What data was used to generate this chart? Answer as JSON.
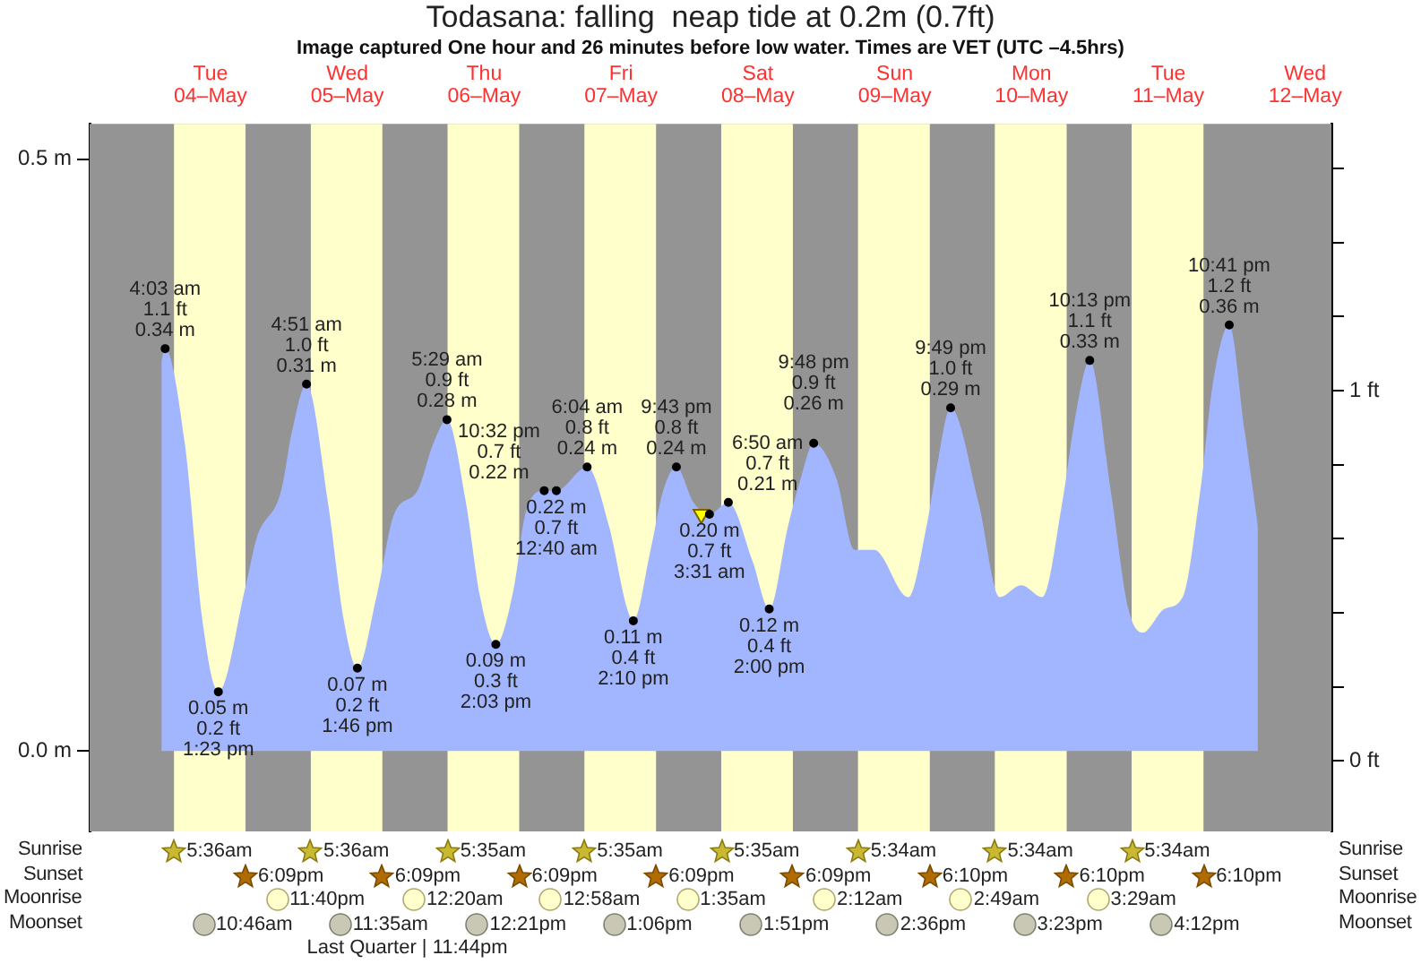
{
  "chart_data": [
    {
      "type": "area",
      "title": "Todasana: falling  neap tide at 0.2m (0.7ft)",
      "subtitle": "Image captured One hour and 26 minutes before low water. Times are VET (UTC –4.5hrs)",
      "xlim": [
        "--05-03T14:48",
        "--05-12T16:36"
      ],
      "xticks": [
        {
          "value": "--05-04T12:00",
          "label": "Tue\n04–May"
        },
        {
          "value": "--05-05T12:00",
          "label": "Wed\n05–May"
        },
        {
          "value": "--05-06T12:00",
          "label": "Thu\n06–May"
        },
        {
          "value": "--05-07T12:00",
          "label": "Fri\n07–May"
        },
        {
          "value": "--05-08T12:00",
          "label": "Sat\n08–May"
        },
        {
          "value": "--05-09T12:00",
          "label": "Sun\n09–May"
        },
        {
          "value": "--05-10T12:00",
          "label": "Mon\n10–May"
        },
        {
          "value": "--05-11T12:00",
          "label": "Tue\n11–May"
        },
        {
          "value": "--05-12T12:00",
          "label": "Wed\n12–May"
        }
      ],
      "ylim": [
        -0.068,
        0.53
      ],
      "yticks": [
        {
          "value": 0,
          "label": "0.0 m"
        },
        {
          "value": 0.5,
          "label": "0.5 m"
        }
      ],
      "y2lim": [
        -0.19,
        1.72
      ],
      "y2ticks": [
        {
          "value": 0,
          "label": "0 ft"
        },
        {
          "value": 0.2,
          "label": null
        },
        {
          "value": 0.4,
          "label": null
        },
        {
          "value": 0.6,
          "label": null
        },
        {
          "value": 0.8,
          "label": null
        },
        {
          "value": 1,
          "label": "1 ft"
        },
        {
          "value": 1.2,
          "label": null
        },
        {
          "value": 1.4,
          "label": null
        },
        {
          "value": 1.6,
          "label": null
        }
      ],
      "bands": [
        {
          "axis": "x",
          "from": "--05-04T05:36",
          "to": "--05-04T18:09",
          "color": "#ffffcc"
        },
        {
          "axis": "x",
          "from": "--05-05T05:36",
          "to": "--05-05T18:09",
          "color": "#ffffcc"
        },
        {
          "axis": "x",
          "from": "--05-06T05:35",
          "to": "--05-06T18:09",
          "color": "#ffffcc"
        },
        {
          "axis": "x",
          "from": "--05-07T05:35",
          "to": "--05-07T18:09",
          "color": "#ffffcc"
        },
        {
          "axis": "x",
          "from": "--05-08T05:35",
          "to": "--05-08T18:09",
          "color": "#ffffcc"
        },
        {
          "axis": "x",
          "from": "--05-09T05:34",
          "to": "--05-09T18:10",
          "color": "#ffffcc"
        },
        {
          "axis": "x",
          "from": "--05-10T05:34",
          "to": "--05-10T18:10",
          "color": "#ffffcc"
        },
        {
          "axis": "x",
          "from": "--05-11T05:34",
          "to": "--05-11T18:10",
          "color": "#ffffcc"
        }
      ],
      "series": [
        {
          "color": "#a2b5ff",
          "x": [
            "--05-04T03:24",
            "--05-04T04:03",
            "--05-04T07:30",
            "--05-04T10:36",
            "--05-04T13:23",
            "--05-04T18:12",
            "--05-04T20:06",
            "--05-05T00:24",
            "--05-05T02:18",
            "--05-05T04:51",
            "--05-05T08:36",
            "--05-05T11:24",
            "--05-05T13:46",
            "--05-05T17:06",
            "--05-05T20:12",
            "--05-06T00:18",
            "--05-06T03:06",
            "--05-06T05:29",
            "--05-06T08:48",
            "--05-06T11:18",
            "--05-06T14:03",
            "--05-06T17:18",
            "--05-06T19:12",
            "--05-06T22:32",
            "--05-07T00:40",
            "--05-07T06:04",
            "--05-07T09:54",
            "--05-07T13:06",
            "--05-07T14:10",
            "--05-07T17:12",
            "--05-07T19:24",
            "--05-07T21:43",
            "--05-08T00:42",
            "--05-08T03:31",
            "--05-08T06:50",
            "--05-08T11:06",
            "--05-08T14:00",
            "--05-08T17:18",
            "--05-08T19:30",
            "--05-08T21:48",
            "--05-09T01:48",
            "--05-09T05:00",
            "--05-09T08:24",
            "--05-09T14:24",
            "--05-09T17:36",
            "--05-09T19:24",
            "--05-09T21:49",
            "--05-10T02:42",
            "--05-10T06:24",
            "--05-10T10:12",
            "--05-10T13:54",
            "--05-10T17:24",
            "--05-10T19:36",
            "--05-10T22:13",
            "--05-11T01:54",
            "--05-11T05:00",
            "--05-11T07:30",
            "--05-11T11:18",
            "--05-11T14:30",
            "--05-11T17:36",
            "--05-11T19:48",
            "--05-11T22:41",
            "--05-12T01:24",
            "--05-12T03:42"
          ],
          "values": [
            0.33,
            0.34,
            0.26,
            0.11,
            0.05,
            0.14,
            0.18,
            0.22,
            0.27,
            0.31,
            0.21,
            0.11,
            0.07,
            0.13,
            0.2,
            0.22,
            0.26,
            0.28,
            0.21,
            0.13,
            0.09,
            0.14,
            0.2,
            0.22,
            0.22,
            0.24,
            0.19,
            0.12,
            0.11,
            0.17,
            0.22,
            0.24,
            0.21,
            0.2,
            0.21,
            0.16,
            0.12,
            0.19,
            0.23,
            0.26,
            0.23,
            0.17,
            0.17,
            0.13,
            0.19,
            0.24,
            0.29,
            0.21,
            0.13,
            0.14,
            0.13,
            0.21,
            0.28,
            0.33,
            0.22,
            0.12,
            0.1,
            0.12,
            0.13,
            0.22,
            0.31,
            0.36,
            0.27,
            0.19
          ]
        },
        {
          "type": "scatter",
          "color": "#000000",
          "marker": "circle",
          "x": [
            "--05-04T04:03",
            "--05-04T13:23",
            "--05-05T04:51",
            "--05-05T13:46",
            "--05-06T05:29",
            "--05-06T14:03",
            "--05-06T22:32",
            "--05-07T00:40",
            "--05-07T06:04",
            "--05-07T14:10",
            "--05-07T21:43",
            "--05-08T03:31",
            "--05-08T06:50",
            "--05-08T14:00",
            "--05-08T21:48",
            "--05-09T21:49",
            "--05-10T22:13",
            "--05-11T22:41"
          ],
          "values": [
            0.34,
            0.05,
            0.31,
            0.07,
            0.28,
            0.09,
            0.22,
            0.22,
            0.24,
            0.11,
            0.24,
            0.2,
            0.21,
            0.12,
            0.26,
            0.29,
            0.33,
            0.36
          ]
        },
        {
          "type": "scatter",
          "color": "#ffff00",
          "marker": "triangle",
          "x": [
            "--05-08T02:05"
          ],
          "values": [
            0.2
          ]
        }
      ],
      "annotations": [
        {
          "text": "4:03 am\n1.1 ft\n0.34 m",
          "x": "--05-04T04:03",
          "y": 0.34
        },
        {
          "text": "0.05 m\n0.2 ft\n1:23 pm",
          "x": "--05-04T13:23",
          "y": 0.05
        },
        {
          "text": "4:51 am\n1.0 ft\n0.31 m",
          "x": "--05-05T04:51",
          "y": 0.31
        },
        {
          "text": "0.07 m\n0.2 ft\n1:46 pm",
          "x": "--05-05T13:46",
          "y": 0.07
        },
        {
          "text": "5:29 am\n0.9 ft\n0.28 m",
          "x": "--05-06T05:29",
          "y": 0.28
        },
        {
          "text": "0.09 m\n0.3 ft\n2:03 pm",
          "x": "--05-06T14:03",
          "y": 0.09
        },
        {
          "text": "10:32 pm\n0.7 ft\n0.22 m",
          "x": "--05-06T22:32",
          "y": 0.22
        },
        {
          "text": "0.22 m\n0.7 ft\n12:40 am",
          "x": "--05-07T00:40",
          "y": 0.22
        },
        {
          "text": "6:04 am\n0.8 ft\n0.24 m",
          "x": "--05-07T06:04",
          "y": 0.24
        },
        {
          "text": "0.11 m\n0.4 ft\n2:10 pm",
          "x": "--05-07T14:10",
          "y": 0.11
        },
        {
          "text": "9:43 pm\n0.8 ft\n0.24 m",
          "x": "--05-07T21:43",
          "y": 0.24
        },
        {
          "text": "0.20 m\n0.7 ft\n3:31 am",
          "x": "--05-08T03:31",
          "y": 0.2
        },
        {
          "text": "6:50 am\n0.7 ft\n0.21 m",
          "x": "--05-08T06:50",
          "y": 0.21
        },
        {
          "text": "0.12 m\n0.4 ft\n2:00 pm",
          "x": "--05-08T14:00",
          "y": 0.12
        },
        {
          "text": "9:48 pm\n0.9 ft\n0.26 m",
          "x": "--05-08T21:48",
          "y": 0.26
        },
        {
          "text": "9:49 pm\n1.0 ft\n0.29 m",
          "x": "--05-09T21:49",
          "y": 0.29
        },
        {
          "text": "10:13 pm\n1.1 ft\n0.33 m",
          "x": "--05-10T22:13",
          "y": 0.33
        },
        {
          "text": "10:41 pm\n1.2 ft\n0.36 m",
          "x": "--05-11T22:41",
          "y": 0.36
        }
      ]
    },
    {
      "type": "other",
      "categories": [
        null,
        null,
        null,
        null,
        null,
        null,
        null,
        null
      ],
      "y_categories": [
        "Sunrise",
        "Sunset",
        "Moonrise",
        "Moonset"
      ],
      "y2_categories": [
        "Sunrise",
        "Sunset",
        "Moonrise",
        "Moonset"
      ],
      "cell_labels": [
        [
          "5:36am",
          "5:36am",
          "5:35am",
          "5:35am",
          "5:35am",
          "5:34am",
          "5:34am",
          "5:34am"
        ],
        [
          "6:09pm",
          "6:09pm",
          "6:09pm",
          "6:09pm",
          "6:09pm",
          "6:10pm",
          "6:10pm",
          "6:10pm"
        ],
        [
          "11:40pm",
          "12:20am",
          "12:58am",
          "1:35am",
          "2:12am",
          "2:49am",
          "3:29am",
          null
        ],
        [
          "10:46am",
          "11:35am",
          "12:21pm",
          "1:06pm",
          "1:51pm",
          "2:36pm",
          "3:23pm",
          "4:12pm"
        ]
      ],
      "annotations": [
        "Last Quarter | 11:44pm"
      ]
    }
  ]
}
